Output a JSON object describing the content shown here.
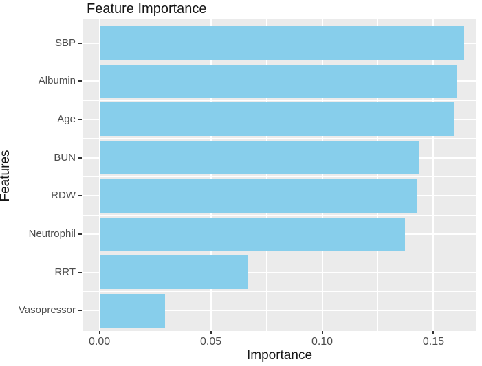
{
  "title": "Feature Importance",
  "colors": {
    "bar_fill": "#87CEEB",
    "panel_background": "#EBEBEB",
    "gridline": "#FFFFFF",
    "tick_label": "#4D4D4D",
    "tick_mark": "#333333",
    "title_text": "#161616"
  },
  "chart_data": {
    "type": "bar",
    "orientation": "horizontal",
    "title": "Feature Importance",
    "xlabel": "Importance",
    "ylabel": "Features",
    "categories": [
      "SBP",
      "Albumin",
      "Age",
      "BUN",
      "RDW",
      "Neutrophil",
      "RRT",
      "Vasopressor"
    ],
    "values": [
      0.1637,
      0.1605,
      0.1594,
      0.1434,
      0.1427,
      0.1372,
      0.0665,
      0.0295
    ],
    "x_ticks": [
      {
        "label": "0.00",
        "value": 0.0
      },
      {
        "label": "0.05",
        "value": 0.05
      },
      {
        "label": "0.10",
        "value": 0.1
      },
      {
        "label": "0.15",
        "value": 0.15
      }
    ],
    "xlim": [
      -0.0076,
      0.1693
    ],
    "grid": true,
    "legend_position": "none",
    "bar_color": "#87CEEB"
  }
}
